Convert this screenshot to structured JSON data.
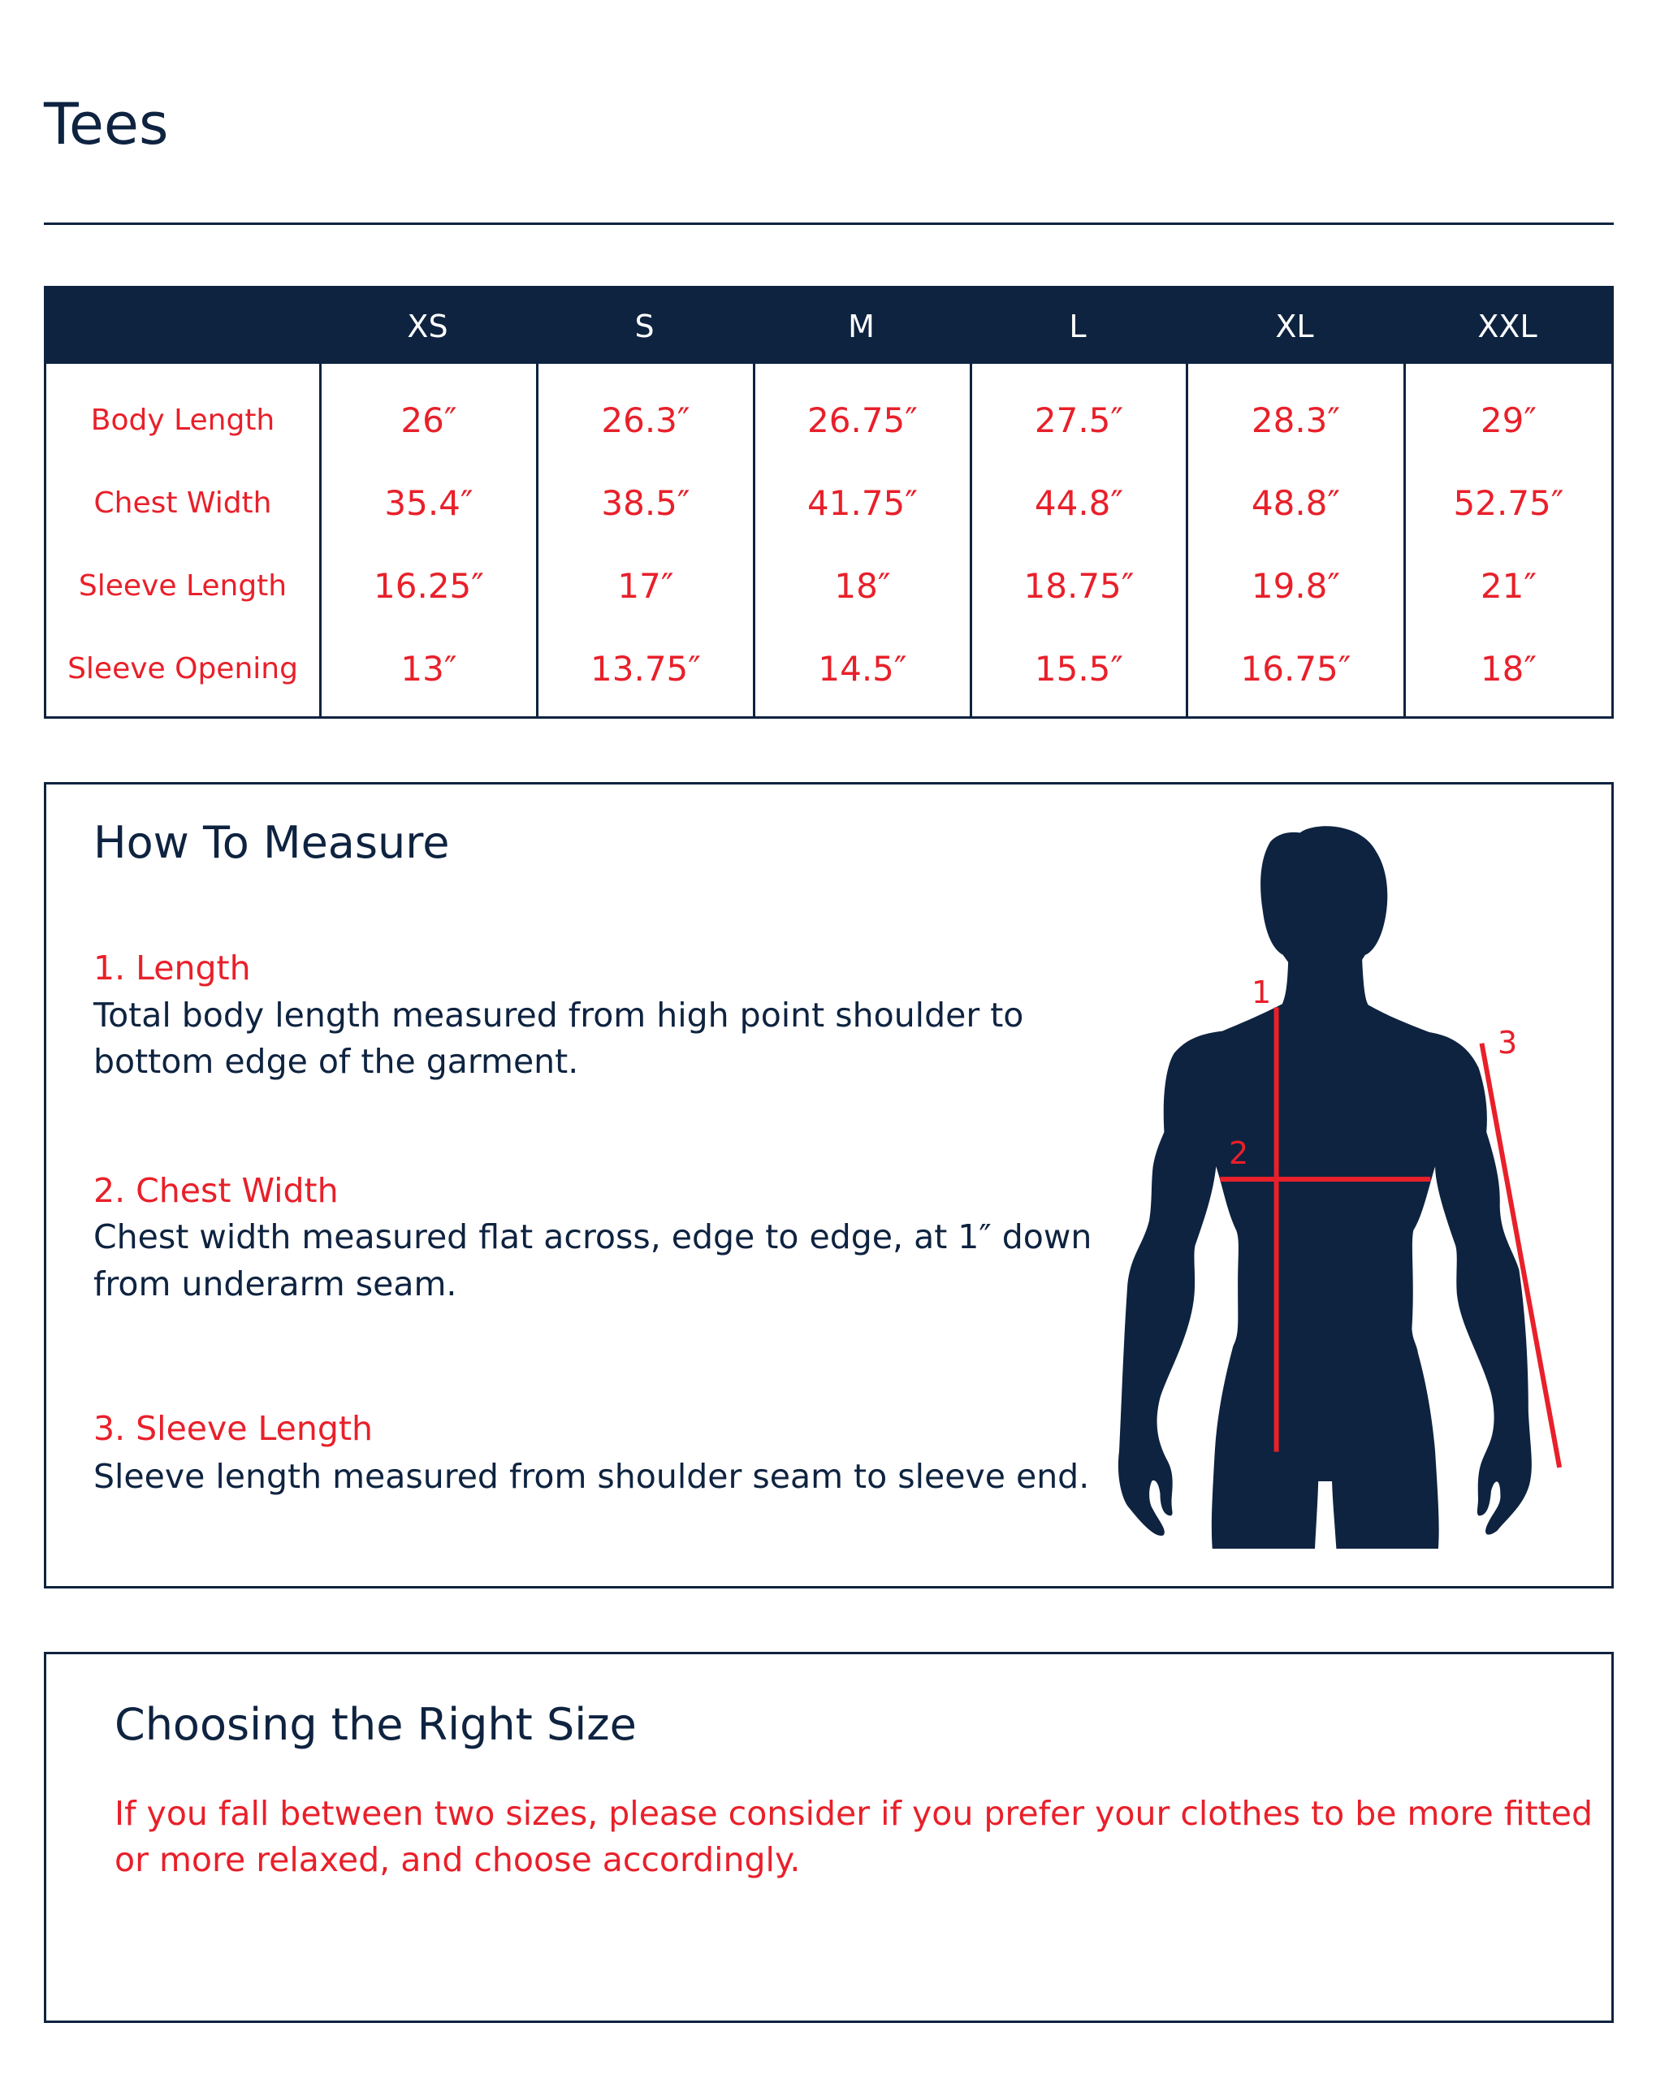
{
  "title": "Tees",
  "size_table": {
    "sizes": [
      "XS",
      "S",
      "M",
      "L",
      "XL",
      "XXL"
    ],
    "rows": [
      {
        "label": "Body Length",
        "values": [
          "26″",
          "26.3″",
          "26.75″",
          "27.5″",
          "28.3″",
          "29″"
        ]
      },
      {
        "label": "Chest Width",
        "values": [
          "35.4″",
          "38.5″",
          "41.75″",
          "44.8″",
          "48.8″",
          "52.75″"
        ]
      },
      {
        "label": "Sleeve Length",
        "values": [
          "16.25″",
          "17″",
          "18″",
          "18.75″",
          "19.8″",
          "21″"
        ]
      },
      {
        "label": "Sleeve Opening",
        "values": [
          "13″",
          "13.75″",
          "14.5″",
          "15.5″",
          "16.75″",
          "18″"
        ]
      }
    ]
  },
  "how_to_measure": {
    "heading": "How To Measure",
    "steps": [
      {
        "title": "1. Length",
        "lines": [
          "Total body length measured from high point shoulder to",
          "bottom edge of the garment."
        ]
      },
      {
        "title": "2. Chest Width",
        "lines": [
          "Chest width measured flat across, edge to edge, at 1″ down",
          "from underarm seam."
        ]
      },
      {
        "title": "3. Sleeve Length",
        "lines": [
          "Sleeve length measured from shoulder seam to sleeve end."
        ]
      }
    ],
    "figure_labels": [
      "1",
      "2",
      "3"
    ]
  },
  "choosing": {
    "heading": "Choosing the Right Size",
    "lines": [
      "If you fall between two sizes, please consider if you prefer your clothes to be more fitted",
      "or more relaxed, and choose accordingly."
    ]
  },
  "colors": {
    "navy": "#0e2340",
    "red": "#e8202a"
  }
}
